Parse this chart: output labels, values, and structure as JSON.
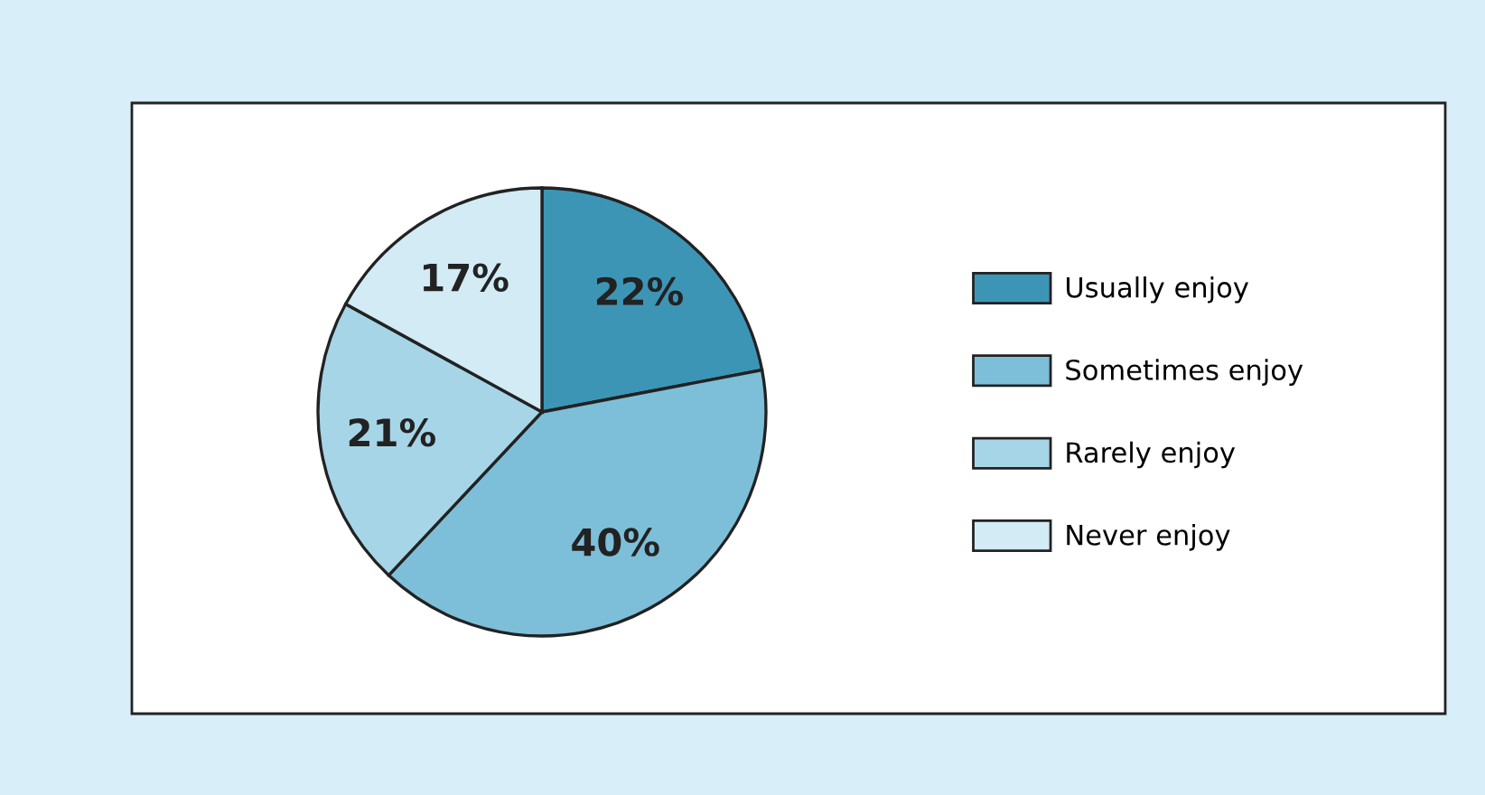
{
  "chart_data": {
    "type": "pie",
    "categories": [
      "Usually enjoy",
      "Sometimes enjoy",
      "Rarely enjoy",
      "Never enjoy"
    ],
    "values": [
      22,
      40,
      21,
      17
    ],
    "colors": [
      "#3d95b6",
      "#7dbfd8",
      "#a6d5e7",
      "#d2ebf5"
    ],
    "value_labels": [
      "22%",
      "40%",
      "21%",
      "17%"
    ],
    "legend": "right"
  }
}
